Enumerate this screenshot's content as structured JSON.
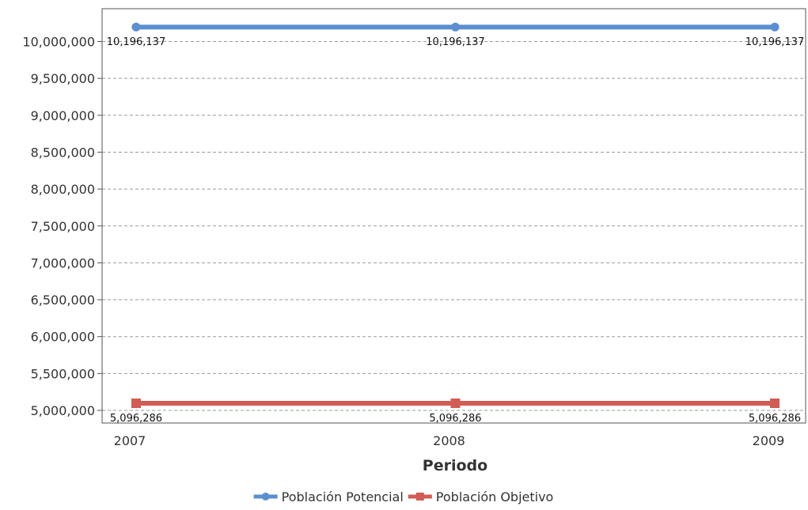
{
  "chart_data": {
    "type": "line",
    "title": "",
    "xlabel": "Periodo",
    "ylabel": "",
    "categories": [
      "2007",
      "2008",
      "2009"
    ],
    "ylim": [
      5000000,
      10300000
    ],
    "yticks": [
      5000000,
      5500000,
      6000000,
      6500000,
      7000000,
      7500000,
      8000000,
      8500000,
      9000000,
      9500000,
      10000000
    ],
    "ytick_labels": [
      "5,000,000",
      "5,500,000",
      "6,000,000",
      "6,500,000",
      "7,000,000",
      "7,500,000",
      "8,000,000",
      "8,500,000",
      "9,000,000",
      "9,500,000",
      "10,000,000"
    ],
    "grid": true,
    "legend": "bottom-center",
    "series": [
      {
        "name": "Población Potencial",
        "values": [
          10196137,
          10196137,
          10196137
        ],
        "labels": [
          "10,196,137",
          "10,196,137",
          "10,196,137"
        ],
        "color": "#5b8fd0",
        "marker": "circle"
      },
      {
        "name": "Población Objetivo",
        "values": [
          5096286,
          5096286,
          5096286
        ],
        "labels": [
          "5,096,286",
          "5,096,286",
          "5,096,286"
        ],
        "color": "#d15b55",
        "marker": "square"
      }
    ]
  }
}
